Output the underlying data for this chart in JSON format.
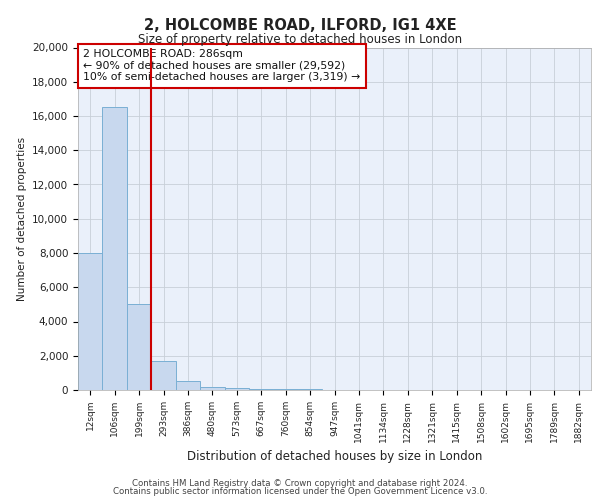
{
  "title1": "2, HOLCOMBE ROAD, ILFORD, IG1 4XE",
  "title2": "Size of property relative to detached houses in London",
  "xlabel": "Distribution of detached houses by size in London",
  "ylabel": "Number of detached properties",
  "footer1": "Contains HM Land Registry data © Crown copyright and database right 2024.",
  "footer2": "Contains public sector information licensed under the Open Government Licence v3.0.",
  "annotation_line1": "2 HOLCOMBE ROAD: 286sqm",
  "annotation_line2": "← 90% of detached houses are smaller (29,592)",
  "annotation_line3": "10% of semi-detached houses are larger (3,319) →",
  "bar_labels": [
    "12sqm",
    "106sqm",
    "199sqm",
    "293sqm",
    "386sqm",
    "480sqm",
    "573sqm",
    "667sqm",
    "760sqm",
    "854sqm",
    "947sqm",
    "1041sqm",
    "1134sqm",
    "1228sqm",
    "1321sqm",
    "1415sqm",
    "1508sqm",
    "1602sqm",
    "1695sqm",
    "1789sqm",
    "1882sqm"
  ],
  "bar_heights": [
    8000,
    16500,
    5000,
    1700,
    550,
    200,
    130,
    80,
    50,
    30,
    20,
    15,
    10,
    8,
    6,
    5,
    4,
    3,
    3,
    2,
    2
  ],
  "bar_color": "#c8d8ee",
  "bar_edge_color": "#7aafd4",
  "red_line_color": "#cc0000",
  "background_color": "#eaf0fa",
  "grid_color": "#c8cfd8",
  "ylim": [
    0,
    20000
  ],
  "yticks": [
    0,
    2000,
    4000,
    6000,
    8000,
    10000,
    12000,
    14000,
    16000,
    18000,
    20000
  ],
  "red_line_index": 2.5
}
